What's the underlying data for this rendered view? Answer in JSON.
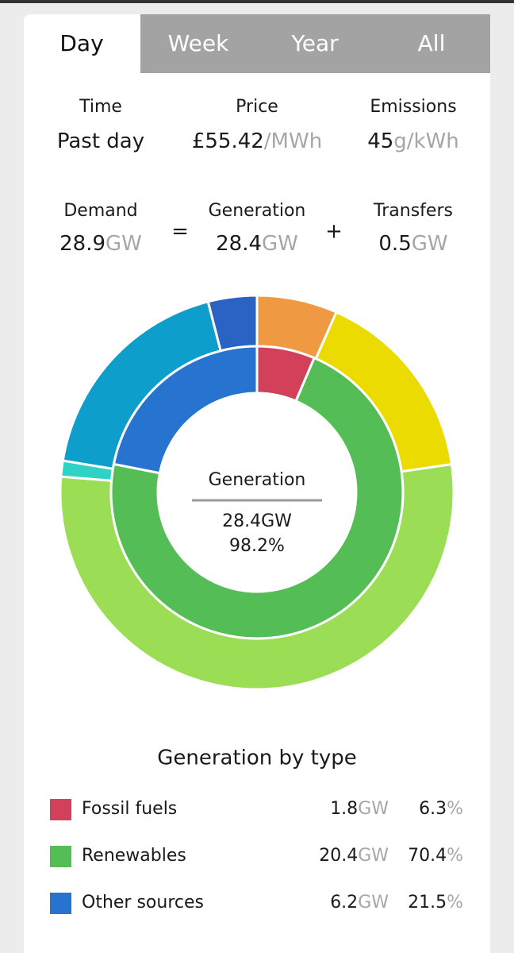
{
  "tabs": [
    "Day",
    "Week",
    "Year",
    "All"
  ],
  "active_tab": 0,
  "summary": [
    {
      "label": "Time",
      "value": "Past day"
    },
    {
      "label": "Price",
      "value": "£55.42",
      "unit": "/MWh"
    },
    {
      "label": "Emissions",
      "value": 45,
      "unit": "g/kWh"
    }
  ],
  "balance": [
    {
      "label": "Demand",
      "value": 28.9,
      "unit": "GW"
    },
    {
      "label": "Generation",
      "value": 28.4,
      "unit": "GW"
    },
    {
      "label": "Transfers",
      "value": 0.5,
      "unit": "GW"
    }
  ],
  "operators": [
    "=",
    "+"
  ],
  "chart_data": {
    "type": "donut",
    "center": {
      "title": "Generation",
      "value": 28.4,
      "unit": "GW",
      "percent": 98.2,
      "percent_unit": "%"
    },
    "outer_ring": {
      "values": [
        6.6,
        16.1,
        53.5,
        1.3,
        18.4,
        4.0
      ],
      "colors": [
        "#ef9a42",
        "#ebdb00",
        "#9bdd55",
        "#2fd3c4",
        "#0d9ecb",
        "#2b63c4"
      ]
    },
    "legend": {
      "title": "Generation by type",
      "items": [
        {
          "name": "Fossil fuels",
          "color": "#d2405a",
          "value": 1.8,
          "unit": "GW",
          "percent": 6.3,
          "percent_unit": "%"
        },
        {
          "name": "Renewables",
          "color": "#55bd55",
          "value": 20.4,
          "unit": "GW",
          "percent": 70.4,
          "percent_unit": "%"
        },
        {
          "name": "Other sources",
          "color": "#2674cf",
          "value": 6.2,
          "unit": "GW",
          "percent": 21.5,
          "percent_unit": "%"
        }
      ]
    }
  }
}
